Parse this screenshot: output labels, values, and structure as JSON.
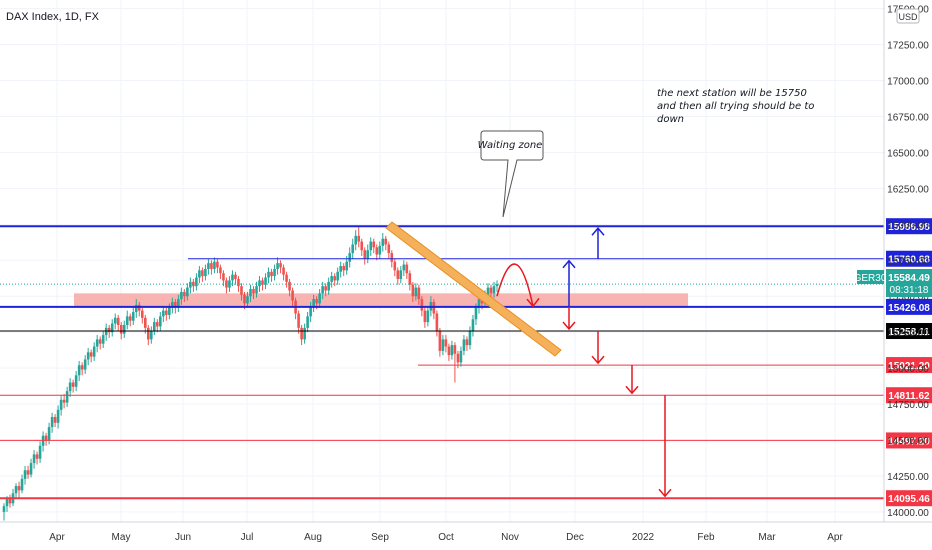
{
  "chart_data": {
    "type": "candlestick",
    "title": "DAX Index, 1D, FX",
    "currency": "USD",
    "ylim": [
      13930,
      17560
    ],
    "y_ticks": [
      14000,
      14250,
      14500,
      14750,
      15000,
      15250,
      15500,
      15750,
      16000,
      16250,
      16500,
      16750,
      17000,
      17250,
      17500
    ],
    "y_tick_labels": [
      "14000.00",
      "14250.00",
      "14500.00",
      "14750.00",
      "15000.00",
      "15250.00",
      "15500.00",
      "15750.00",
      "16000.00",
      "16250.00",
      "16500.00",
      "16750.00",
      "17000.00",
      "17250.00",
      "17500.00"
    ],
    "x_ticks": [
      "Apr",
      "May",
      "Jun",
      "Jul",
      "Aug",
      "Sep",
      "Oct",
      "Nov",
      "Dec",
      "2022",
      "Feb",
      "Mar",
      "Apr"
    ],
    "price_levels": [
      {
        "value": 15986.98,
        "label": "15986.98",
        "color": "#1e22d8"
      },
      {
        "value": 15760.68,
        "label": "15760.68",
        "color": "#1e22d8"
      },
      {
        "value": 15426.08,
        "label": "15426.08",
        "color": "#1e22d8"
      },
      {
        "value": 15258.11,
        "label": "15258.11",
        "color": "#000000"
      },
      {
        "value": 15021.2,
        "label": "15021.20",
        "color": "#f23645"
      },
      {
        "value": 14811.62,
        "label": "14811.62",
        "color": "#f23645"
      },
      {
        "value": 14497.2,
        "label": "14497.20",
        "color": "#f23645"
      },
      {
        "value": 14095.46,
        "label": "14095.46",
        "color": "#f23645"
      }
    ],
    "current": {
      "symbol": "GER30",
      "price": "15584.49",
      "countdown": "08:31:18",
      "color": "#26a69a"
    },
    "callout": "Waiting zone",
    "note": [
      "the next station will be 15750",
      "and then all trying should be to",
      "down"
    ],
    "zone": {
      "from": 15430,
      "to": 15520,
      "color": "#f7a7a3"
    },
    "candles": [
      [
        14000,
        14040,
        13960,
        14060,
        13940
      ],
      [
        14040,
        14090,
        14020,
        14110,
        14000
      ],
      [
        14090,
        14060,
        14040,
        14120,
        14030
      ],
      [
        14060,
        14130,
        14050,
        14160,
        14040
      ],
      [
        14130,
        14180,
        14110,
        14200,
        14100
      ],
      [
        14180,
        14150,
        14120,
        14210,
        14100
      ],
      [
        14150,
        14230,
        14140,
        14260,
        14130
      ],
      [
        14230,
        14290,
        14210,
        14320,
        14190
      ],
      [
        14290,
        14260,
        14240,
        14320,
        14230
      ],
      [
        14260,
        14340,
        14250,
        14370,
        14240
      ],
      [
        14340,
        14400,
        14320,
        14430,
        14300
      ],
      [
        14400,
        14370,
        14350,
        14420,
        14330
      ],
      [
        14370,
        14460,
        14360,
        14490,
        14340
      ],
      [
        14460,
        14530,
        14440,
        14560,
        14420
      ],
      [
        14530,
        14500,
        14480,
        14550,
        14460
      ],
      [
        14500,
        14590,
        14490,
        14620,
        14470
      ],
      [
        14590,
        14660,
        14570,
        14690,
        14550
      ],
      [
        14660,
        14620,
        14600,
        14680,
        14590
      ],
      [
        14620,
        14710,
        14600,
        14740,
        14580
      ],
      [
        14710,
        14780,
        14690,
        14810,
        14670
      ],
      [
        14780,
        14760,
        14740,
        14820,
        14720
      ],
      [
        14760,
        14840,
        14750,
        14870,
        14730
      ],
      [
        14840,
        14900,
        14820,
        14930,
        14800
      ],
      [
        14900,
        14870,
        14850,
        14920,
        14830
      ],
      [
        14870,
        14950,
        14860,
        14980,
        14840
      ],
      [
        14950,
        15020,
        14930,
        15050,
        14910
      ],
      [
        15020,
        14990,
        14970,
        15040,
        14950
      ],
      [
        14990,
        15060,
        14980,
        15090,
        14960
      ],
      [
        15060,
        15110,
        15040,
        15140,
        15020
      ],
      [
        15110,
        15080,
        15060,
        15130,
        15040
      ],
      [
        15080,
        15150,
        15070,
        15180,
        15050
      ],
      [
        15150,
        15200,
        15130,
        15230,
        15110
      ],
      [
        15200,
        15170,
        15150,
        15220,
        15130
      ],
      [
        15170,
        15230,
        15160,
        15260,
        15140
      ],
      [
        15230,
        15280,
        15210,
        15310,
        15190
      ],
      [
        15280,
        15250,
        15230,
        15300,
        15210
      ],
      [
        15250,
        15310,
        15240,
        15340,
        15220
      ],
      [
        15310,
        15350,
        15290,
        15380,
        15270
      ],
      [
        15350,
        15300,
        15280,
        15370,
        15260
      ],
      [
        15300,
        15240,
        15220,
        15320,
        15200
      ],
      [
        15240,
        15300,
        15230,
        15330,
        15210
      ],
      [
        15300,
        15360,
        15290,
        15400,
        15270
      ],
      [
        15360,
        15330,
        15310,
        15380,
        15290
      ],
      [
        15330,
        15390,
        15320,
        15420,
        15300
      ],
      [
        15390,
        15440,
        15370,
        15480,
        15350
      ],
      [
        15440,
        15400,
        15380,
        15460,
        15360
      ],
      [
        15400,
        15350,
        15330,
        15420,
        15310
      ],
      [
        15350,
        15280,
        15260,
        15370,
        15240
      ],
      [
        15280,
        15200,
        15180,
        15300,
        15160
      ],
      [
        15200,
        15260,
        15190,
        15290,
        15170
      ],
      [
        15260,
        15320,
        15250,
        15350,
        15230
      ],
      [
        15320,
        15290,
        15270,
        15340,
        15250
      ],
      [
        15290,
        15360,
        15280,
        15390,
        15260
      ],
      [
        15360,
        15400,
        15340,
        15430,
        15320
      ],
      [
        15400,
        15370,
        15350,
        15420,
        15330
      ],
      [
        15370,
        15420,
        15360,
        15450,
        15340
      ],
      [
        15420,
        15460,
        15400,
        15490,
        15380
      ],
      [
        15460,
        15420,
        15400,
        15480,
        15380
      ],
      [
        15420,
        15480,
        15410,
        15510,
        15390
      ],
      [
        15480,
        15530,
        15460,
        15560,
        15440
      ],
      [
        15530,
        15500,
        15480,
        15550,
        15460
      ],
      [
        15500,
        15560,
        15490,
        15590,
        15470
      ],
      [
        15560,
        15600,
        15540,
        15630,
        15520
      ],
      [
        15600,
        15570,
        15550,
        15620,
        15530
      ],
      [
        15570,
        15630,
        15560,
        15660,
        15540
      ],
      [
        15630,
        15680,
        15610,
        15710,
        15590
      ],
      [
        15680,
        15640,
        15620,
        15700,
        15600
      ],
      [
        15640,
        15690,
        15630,
        15720,
        15610
      ],
      [
        15690,
        15730,
        15670,
        15760,
        15650
      ],
      [
        15730,
        15690,
        15670,
        15750,
        15650
      ],
      [
        15690,
        15740,
        15680,
        15770,
        15660
      ],
      [
        15740,
        15700,
        15680,
        15760,
        15660
      ],
      [
        15700,
        15660,
        15640,
        15720,
        15620
      ],
      [
        15660,
        15610,
        15590,
        15680,
        15570
      ],
      [
        15610,
        15560,
        15540,
        15630,
        15520
      ],
      [
        15560,
        15610,
        15550,
        15640,
        15530
      ],
      [
        15610,
        15650,
        15590,
        15680,
        15570
      ],
      [
        15650,
        15620,
        15600,
        15670,
        15580
      ],
      [
        15620,
        15570,
        15550,
        15640,
        15530
      ],
      [
        15570,
        15510,
        15490,
        15590,
        15470
      ],
      [
        15510,
        15450,
        15430,
        15530,
        15410
      ],
      [
        15450,
        15500,
        15440,
        15530,
        15420
      ],
      [
        15500,
        15550,
        15480,
        15580,
        15460
      ],
      [
        15550,
        15520,
        15500,
        15570,
        15480
      ],
      [
        15520,
        15570,
        15510,
        15600,
        15490
      ],
      [
        15570,
        15610,
        15550,
        15640,
        15530
      ],
      [
        15610,
        15580,
        15560,
        15630,
        15540
      ],
      [
        15580,
        15630,
        15570,
        15660,
        15550
      ],
      [
        15630,
        15670,
        15610,
        15700,
        15590
      ],
      [
        15670,
        15640,
        15620,
        15690,
        15600
      ],
      [
        15640,
        15690,
        15630,
        15720,
        15610
      ],
      [
        15690,
        15730,
        15670,
        15770,
        15650
      ],
      [
        15730,
        15700,
        15680,
        15750,
        15660
      ],
      [
        15700,
        15650,
        15630,
        15720,
        15610
      ],
      [
        15650,
        15600,
        15580,
        15670,
        15560
      ],
      [
        15600,
        15540,
        15520,
        15620,
        15500
      ],
      [
        15540,
        15470,
        15450,
        15560,
        15430
      ],
      [
        15470,
        15380,
        15360,
        15490,
        15340
      ],
      [
        15380,
        15280,
        15260,
        15400,
        15240
      ],
      [
        15280,
        15200,
        15180,
        15300,
        15160
      ],
      [
        15200,
        15280,
        15190,
        15310,
        15170
      ],
      [
        15280,
        15360,
        15270,
        15390,
        15250
      ],
      [
        15360,
        15430,
        15340,
        15460,
        15320
      ],
      [
        15430,
        15480,
        15410,
        15510,
        15390
      ],
      [
        15480,
        15450,
        15430,
        15500,
        15410
      ],
      [
        15450,
        15520,
        15440,
        15550,
        15420
      ],
      [
        15520,
        15570,
        15500,
        15600,
        15480
      ],
      [
        15570,
        15540,
        15520,
        15590,
        15500
      ],
      [
        15540,
        15600,
        15530,
        15630,
        15510
      ],
      [
        15600,
        15640,
        15580,
        15670,
        15560
      ],
      [
        15640,
        15610,
        15590,
        15660,
        15570
      ],
      [
        15610,
        15670,
        15600,
        15700,
        15580
      ],
      [
        15670,
        15710,
        15650,
        15740,
        15630
      ],
      [
        15710,
        15680,
        15660,
        15730,
        15640
      ],
      [
        15680,
        15740,
        15670,
        15780,
        15650
      ],
      [
        15740,
        15800,
        15720,
        15840,
        15700
      ],
      [
        15800,
        15860,
        15780,
        15900,
        15760
      ],
      [
        15860,
        15920,
        15840,
        15960,
        15820
      ],
      [
        15920,
        15880,
        15860,
        15990,
        15840
      ],
      [
        15880,
        15820,
        15800,
        15900,
        15780
      ],
      [
        15820,
        15760,
        15740,
        15840,
        15720
      ],
      [
        15760,
        15820,
        15750,
        15860,
        15730
      ],
      [
        15820,
        15880,
        15800,
        15910,
        15780
      ],
      [
        15880,
        15840,
        15820,
        15900,
        15800
      ],
      [
        15840,
        15790,
        15770,
        15860,
        15750
      ],
      [
        15790,
        15850,
        15780,
        15880,
        15760
      ],
      [
        15850,
        15900,
        15830,
        15940,
        15810
      ],
      [
        15900,
        15860,
        15840,
        15920,
        15820
      ],
      [
        15860,
        15800,
        15780,
        15880,
        15760
      ],
      [
        15800,
        15740,
        15720,
        15820,
        15700
      ],
      [
        15740,
        15680,
        15660,
        15760,
        15640
      ],
      [
        15680,
        15620,
        15600,
        15700,
        15580
      ],
      [
        15620,
        15680,
        15610,
        15710,
        15590
      ],
      [
        15680,
        15720,
        15660,
        15750,
        15640
      ],
      [
        15720,
        15660,
        15640,
        15740,
        15620
      ],
      [
        15660,
        15580,
        15560,
        15680,
        15540
      ],
      [
        15580,
        15500,
        15480,
        15600,
        15460
      ],
      [
        15500,
        15560,
        15490,
        15590,
        15470
      ],
      [
        15560,
        15480,
        15460,
        15580,
        15440
      ],
      [
        15480,
        15400,
        15380,
        15500,
        15360
      ],
      [
        15400,
        15320,
        15300,
        15420,
        15280
      ],
      [
        15320,
        15400,
        15310,
        15430,
        15290
      ],
      [
        15400,
        15460,
        15380,
        15500,
        15360
      ],
      [
        15460,
        15380,
        15360,
        15480,
        15340
      ],
      [
        15380,
        15260,
        15240,
        15400,
        15220
      ],
      [
        15260,
        15120,
        15100,
        15280,
        15080
      ],
      [
        15120,
        15200,
        15110,
        15230,
        15090
      ],
      [
        15200,
        15150,
        15130,
        15230,
        15110
      ],
      [
        15150,
        15090,
        15070,
        15170,
        15050
      ],
      [
        15090,
        15160,
        15080,
        15190,
        15060
      ],
      [
        15160,
        15100,
        15080,
        15180,
        14900
      ],
      [
        15100,
        15040,
        15020,
        15120,
        15000
      ],
      [
        15040,
        15120,
        15030,
        15150,
        15010
      ],
      [
        15120,
        15200,
        15110,
        15230,
        15090
      ],
      [
        15200,
        15160,
        15140,
        15220,
        15120
      ],
      [
        15160,
        15260,
        15150,
        15290,
        15130
      ],
      [
        15260,
        15340,
        15240,
        15370,
        15220
      ],
      [
        15340,
        15420,
        15320,
        15450,
        15300
      ],
      [
        15420,
        15480,
        15400,
        15510,
        15380
      ],
      [
        15480,
        15450,
        15430,
        15500,
        15410
      ],
      [
        15450,
        15510,
        15440,
        15540,
        15420
      ],
      [
        15510,
        15560,
        15490,
        15590,
        15470
      ],
      [
        15560,
        15520,
        15500,
        15580,
        15480
      ],
      [
        15520,
        15570,
        15510,
        15600,
        15490
      ],
      [
        15570,
        15584,
        15550,
        15610,
        15530
      ]
    ]
  }
}
